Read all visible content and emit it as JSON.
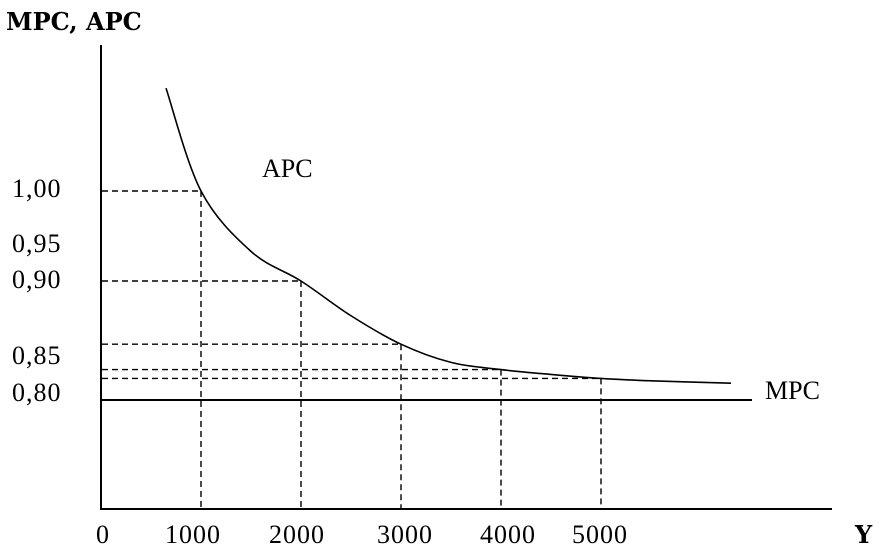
{
  "chart_data": {
    "type": "line",
    "ylabel": "MPC, APC",
    "xlabel": "Y",
    "x_ticks": [
      "0",
      "1000",
      "2000",
      "3000",
      "4000",
      "5000"
    ],
    "y_ticks": [
      {
        "value": 1.0,
        "label": "1,00"
      },
      {
        "value": 0.95,
        "label": "0,95"
      },
      {
        "value": 0.9,
        "label": "0,90"
      },
      {
        "value": 0.85,
        "label": "0,85"
      },
      {
        "value": 0.8,
        "label": "0,80"
      }
    ],
    "series": [
      {
        "name": "APC",
        "x": [
          650,
          1000,
          1500,
          2000,
          2500,
          3000,
          3500,
          4000,
          4500,
          5000,
          5500,
          6300
        ],
        "y": [
          1.17,
          1.0,
          0.94,
          0.9,
          0.878,
          0.86,
          0.847,
          0.838,
          0.832,
          0.827,
          0.824,
          0.821
        ]
      },
      {
        "name": "MPC",
        "x": [
          0,
          6400
        ],
        "y": [
          0.8,
          0.8
        ]
      }
    ],
    "guides": [
      {
        "x": 1000,
        "y": 1.0
      },
      {
        "x": 2000,
        "y": 0.9
      },
      {
        "x": 3000,
        "y": 0.86
      },
      {
        "x": 4000,
        "y": 0.838
      },
      {
        "x": 5000,
        "y": 0.827
      }
    ],
    "grid": false
  }
}
